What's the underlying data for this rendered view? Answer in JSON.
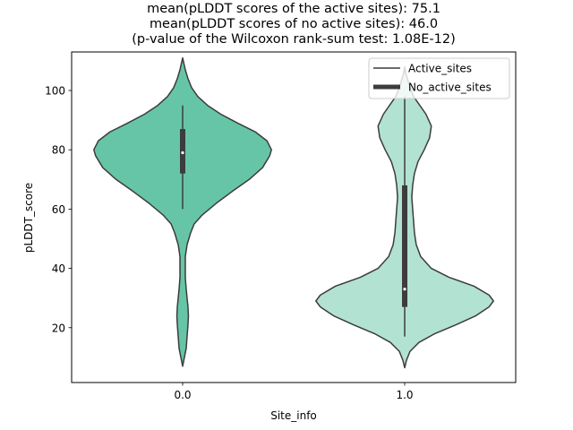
{
  "chart_data": {
    "type": "violin",
    "title_lines": [
      "mean(pLDDT scores of the active sites): 75.1",
      "mean(pLDDT scores of no active sites): 46.0",
      "(p-value of the Wilcoxon rank-sum test: 1.08E-12)"
    ],
    "xlabel": "Site_info",
    "ylabel": "pLDDT_score",
    "categories": [
      "0.0",
      "1.0"
    ],
    "ylim": [
      1.5,
      113
    ],
    "yticks": [
      20,
      40,
      60,
      80,
      100
    ],
    "ytick_labels": [
      "20",
      "40",
      "60",
      "80",
      "100"
    ],
    "legend": {
      "location": "top-right",
      "entries": [
        {
          "label": "Active_sites",
          "style": "thin-line"
        },
        {
          "label": "No_active_sites",
          "style": "thick-line"
        }
      ]
    },
    "violins": [
      {
        "category": "0.0",
        "fill": "#66c5a6",
        "median": 79,
        "q1": 72,
        "q3": 87,
        "whisker_low": 60,
        "whisker_high": 95,
        "density_profile": [
          [
            7,
            0.0
          ],
          [
            10,
            0.02
          ],
          [
            13,
            0.04
          ],
          [
            17,
            0.05
          ],
          [
            21,
            0.06
          ],
          [
            24,
            0.065
          ],
          [
            27,
            0.06
          ],
          [
            30,
            0.05
          ],
          [
            33,
            0.04
          ],
          [
            37,
            0.03
          ],
          [
            40,
            0.03
          ],
          [
            44,
            0.03
          ],
          [
            48,
            0.05
          ],
          [
            52,
            0.09
          ],
          [
            55,
            0.13
          ],
          [
            58,
            0.22
          ],
          [
            62,
            0.38
          ],
          [
            66,
            0.56
          ],
          [
            70,
            0.75
          ],
          [
            74,
            0.9
          ],
          [
            78,
            0.98
          ],
          [
            80,
            1.0
          ],
          [
            83,
            0.95
          ],
          [
            86,
            0.82
          ],
          [
            89,
            0.62
          ],
          [
            92,
            0.43
          ],
          [
            95,
            0.28
          ],
          [
            98,
            0.17
          ],
          [
            101,
            0.1
          ],
          [
            104,
            0.06
          ],
          [
            107,
            0.03
          ],
          [
            109,
            0.015
          ],
          [
            111,
            0.0
          ]
        ]
      },
      {
        "category": "1.0",
        "fill": "#b2e2d2",
        "median": 33,
        "q1": 27,
        "q3": 68,
        "whisker_low": 17,
        "whisker_high": 98,
        "density_profile": [
          [
            6.5,
            0.0
          ],
          [
            9,
            0.02
          ],
          [
            12,
            0.06
          ],
          [
            15,
            0.16
          ],
          [
            18,
            0.34
          ],
          [
            21,
            0.58
          ],
          [
            24,
            0.8
          ],
          [
            27,
            0.95
          ],
          [
            29,
            1.0
          ],
          [
            31,
            0.95
          ],
          [
            34,
            0.78
          ],
          [
            37,
            0.5
          ],
          [
            40,
            0.3
          ],
          [
            44,
            0.18
          ],
          [
            48,
            0.13
          ],
          [
            52,
            0.11
          ],
          [
            56,
            0.1
          ],
          [
            60,
            0.09
          ],
          [
            64,
            0.08
          ],
          [
            68,
            0.09
          ],
          [
            72,
            0.11
          ],
          [
            76,
            0.15
          ],
          [
            80,
            0.22
          ],
          [
            84,
            0.28
          ],
          [
            88,
            0.3
          ],
          [
            92,
            0.24
          ],
          [
            95,
            0.17
          ],
          [
            98,
            0.1
          ],
          [
            101,
            0.06
          ],
          [
            104,
            0.03
          ],
          [
            106,
            0.01
          ],
          [
            108,
            0.0
          ]
        ]
      }
    ]
  }
}
